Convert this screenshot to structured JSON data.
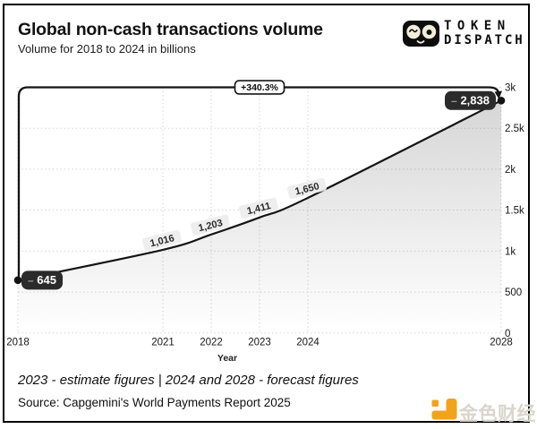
{
  "header": {
    "title": "Global non-cash transactions volume",
    "subtitle": "Volume for 2018 to 2024 in billions"
  },
  "brand": {
    "line1": "TOKEN",
    "line2": "DISPATCH"
  },
  "chart_data": {
    "type": "line",
    "title": "Global non-cash transactions volume",
    "x": [
      2018,
      2021,
      2022,
      2023,
      2024,
      2028
    ],
    "values": [
      645,
      1016,
      1203,
      1411,
      1650,
      2838
    ],
    "point_labels": [
      "645",
      "1,016",
      "1,203",
      "1,411",
      "1,650",
      "2,838"
    ],
    "x_tick_labels": [
      "2018",
      "2021",
      "2022",
      "2023",
      "2024",
      "2028"
    ],
    "y_ticks": [
      {
        "value": 0,
        "label": "0"
      },
      {
        "value": 500,
        "label": "500"
      },
      {
        "value": 1000,
        "label": "1k"
      },
      {
        "value": 1500,
        "label": "1.5k"
      },
      {
        "value": 2000,
        "label": "2k"
      },
      {
        "value": 2500,
        "label": "2.5k"
      },
      {
        "value": 3000,
        "label": "3k"
      }
    ],
    "xlabel": "Year",
    "xlim": [
      2018,
      2028
    ],
    "ylim": [
      0,
      3000
    ],
    "grid": true,
    "legend": false,
    "growth_annotation": "+340.3%",
    "dash_glyph": "–",
    "colors": {
      "line": "#141414",
      "grid": "#d7d7d7",
      "pill_bg": "#2b2b2b",
      "pill_text": "#ffffff",
      "pill_dash": "#9a9a9a",
      "label_bg": "#ededed",
      "label_text": "#2c2c2c",
      "badge_bg": "#ffffff",
      "badge_border": "#141414",
      "axis_text": "#161616",
      "area_top": "rgba(0,0,0,0.16)",
      "area_bottom": "rgba(0,0,0,0)"
    }
  },
  "footer": {
    "note": "2023 - estimate figures | 2024 and 2028 - forecast figures",
    "source": "Source: Capgemini's World Payments Report 2025"
  },
  "watermark": {
    "text": "金色财经"
  }
}
